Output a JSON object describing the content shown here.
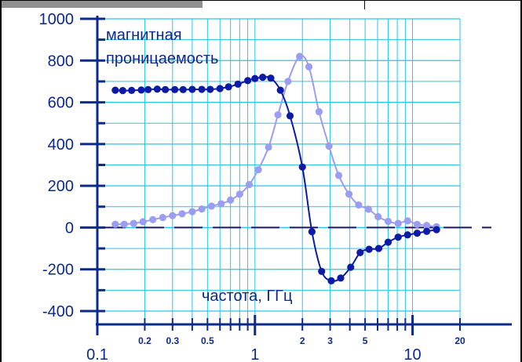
{
  "chart_data": {
    "type": "line",
    "x_scale": "log",
    "xlim": [
      0.1,
      20
    ],
    "ylim": [
      -400,
      1000
    ],
    "grid": true,
    "y_ticks": [
      1000,
      800,
      600,
      400,
      200,
      0,
      -200,
      -400
    ],
    "x_tick_labels_major": [
      "0.1",
      "1",
      "10"
    ],
    "x_tick_labels_minor": [
      "0.2",
      "0.3",
      "0.5",
      "2",
      "3",
      "5",
      "20"
    ],
    "annotation_title_line1": "магнитная",
    "annotation_title_line2": "проницаемость",
    "xlabel": "частота, ГГц",
    "series": [
      {
        "color": "#0c1aa8",
        "marker": "circle",
        "values": [
          {
            "x": 0.13,
            "y": 658
          },
          {
            "x": 0.145,
            "y": 656
          },
          {
            "x": 0.165,
            "y": 657
          },
          {
            "x": 0.19,
            "y": 659
          },
          {
            "x": 0.21,
            "y": 661
          },
          {
            "x": 0.24,
            "y": 663
          },
          {
            "x": 0.27,
            "y": 661
          },
          {
            "x": 0.31,
            "y": 661
          },
          {
            "x": 0.35,
            "y": 661
          },
          {
            "x": 0.4,
            "y": 662
          },
          {
            "x": 0.46,
            "y": 662
          },
          {
            "x": 0.52,
            "y": 662
          },
          {
            "x": 0.6,
            "y": 666
          },
          {
            "x": 0.68,
            "y": 674
          },
          {
            "x": 0.78,
            "y": 687
          },
          {
            "x": 0.9,
            "y": 704
          },
          {
            "x": 1.0,
            "y": 714
          },
          {
            "x": 1.12,
            "y": 720
          },
          {
            "x": 1.26,
            "y": 716
          },
          {
            "x": 1.45,
            "y": 658
          },
          {
            "x": 1.67,
            "y": 535
          },
          {
            "x": 2.0,
            "y": 290
          },
          {
            "x": 2.3,
            "y": -20
          },
          {
            "x": 2.65,
            "y": -210
          },
          {
            "x": 3.05,
            "y": -255
          },
          {
            "x": 3.5,
            "y": -242
          },
          {
            "x": 4.05,
            "y": -190
          },
          {
            "x": 4.65,
            "y": -120
          },
          {
            "x": 5.3,
            "y": -104
          },
          {
            "x": 6.1,
            "y": -100
          },
          {
            "x": 7.0,
            "y": -70
          },
          {
            "x": 8.1,
            "y": -46
          },
          {
            "x": 9.3,
            "y": -35
          },
          {
            "x": 10.7,
            "y": -27
          },
          {
            "x": 12.3,
            "y": -18
          },
          {
            "x": 14.2,
            "y": -10
          }
        ]
      },
      {
        "color": "#9b9df2",
        "marker": "circle",
        "values": [
          {
            "x": 0.13,
            "y": 16
          },
          {
            "x": 0.148,
            "y": 16
          },
          {
            "x": 0.17,
            "y": 20
          },
          {
            "x": 0.195,
            "y": 28
          },
          {
            "x": 0.225,
            "y": 38
          },
          {
            "x": 0.26,
            "y": 48
          },
          {
            "x": 0.3,
            "y": 57
          },
          {
            "x": 0.345,
            "y": 66
          },
          {
            "x": 0.4,
            "y": 76
          },
          {
            "x": 0.46,
            "y": 89
          },
          {
            "x": 0.53,
            "y": 103
          },
          {
            "x": 0.61,
            "y": 114
          },
          {
            "x": 0.7,
            "y": 132
          },
          {
            "x": 0.8,
            "y": 160
          },
          {
            "x": 0.92,
            "y": 206
          },
          {
            "x": 1.05,
            "y": 277
          },
          {
            "x": 1.22,
            "y": 385
          },
          {
            "x": 1.4,
            "y": 540
          },
          {
            "x": 1.62,
            "y": 700
          },
          {
            "x": 1.92,
            "y": 820
          },
          {
            "x": 2.2,
            "y": 770
          },
          {
            "x": 2.55,
            "y": 555
          },
          {
            "x": 2.95,
            "y": 390
          },
          {
            "x": 3.4,
            "y": 250
          },
          {
            "x": 3.95,
            "y": 160
          },
          {
            "x": 4.55,
            "y": 108
          },
          {
            "x": 5.25,
            "y": 88
          },
          {
            "x": 6.05,
            "y": 52
          },
          {
            "x": 7.0,
            "y": 30
          },
          {
            "x": 8.1,
            "y": 20
          },
          {
            "x": 9.3,
            "y": 32
          },
          {
            "x": 10.7,
            "y": 15
          },
          {
            "x": 12.3,
            "y": 10
          },
          {
            "x": 14.2,
            "y": 4
          }
        ]
      }
    ]
  }
}
